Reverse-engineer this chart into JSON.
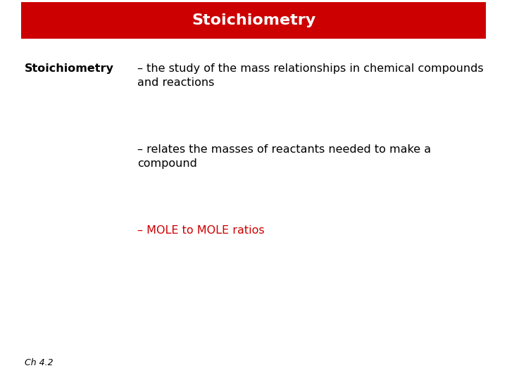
{
  "title": "Stoichiometry",
  "title_bg_color": "#cc0000",
  "title_text_color": "#ffffff",
  "bg_color": "#ffffff",
  "bold_label": "Stoichiometry",
  "bold_label_color": "#000000",
  "line1_text": "– the study of the mass relationships in chemical compounds\nand reactions",
  "line1_color": "#000000",
  "line2_text": "– relates the masses of reactants needed to make a\ncompound",
  "line2_color": "#000000",
  "line3_text": "– MOLE to MOLE ratios",
  "line3_color": "#cc0000",
  "footer_text": "Ch 4.2",
  "footer_color": "#000000",
  "title_fontsize": 16,
  "body_fontsize": 11.5,
  "bold_label_fontsize": 11.5,
  "footer_fontsize": 9
}
